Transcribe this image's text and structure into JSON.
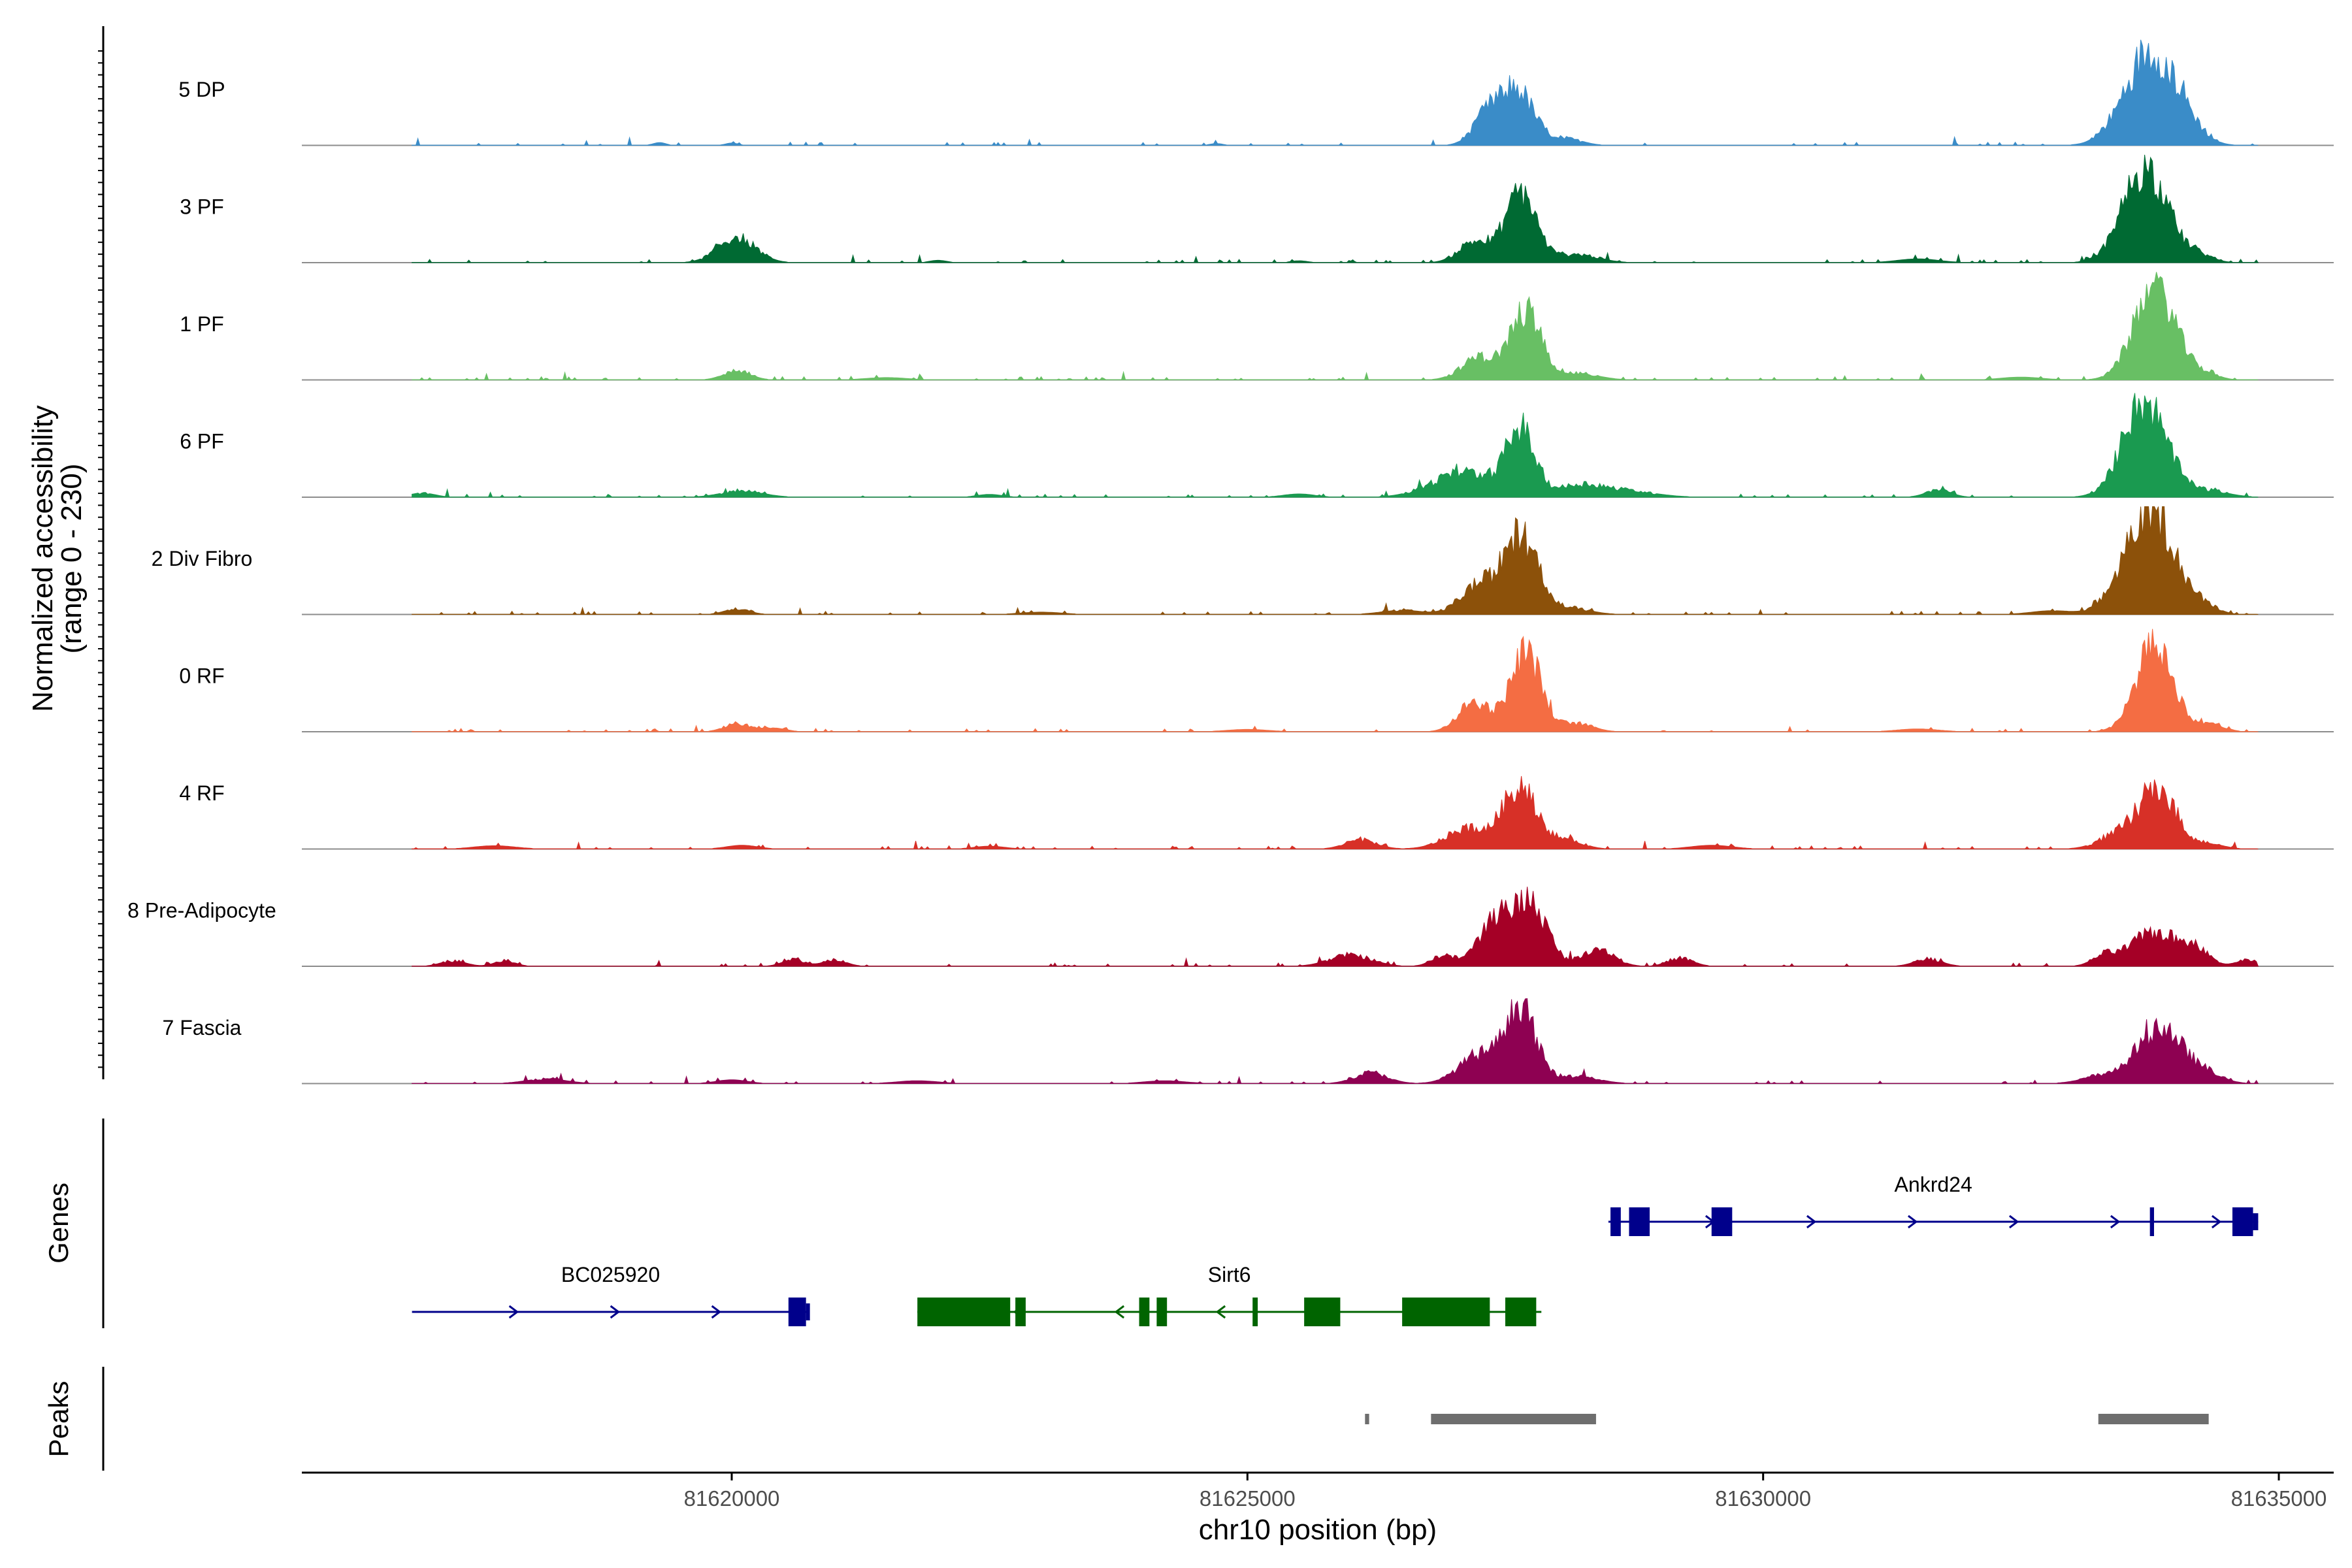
{
  "chart_data": {
    "type": "area",
    "title": "",
    "xlabel": "chr10 position (bp)",
    "ylabel": "Normalized accessibility",
    "ylabel_range": "(range 0 - 230)",
    "xlim": [
      81616000,
      81636000
    ],
    "ylim": [
      0,
      230
    ],
    "data_xlim": [
      81616900,
      81634800
    ],
    "x_ticks": [
      81620000,
      81625000,
      81630000,
      81635000
    ],
    "x_tick_labels": [
      "81620000",
      "81625000",
      "81630000",
      "81635000"
    ],
    "tracks": [
      {
        "name": "5 DP",
        "color": "#3A8CC8",
        "peaks": [
          [
            81619300,
            6,
            60
          ],
          [
            81620000,
            5,
            60
          ],
          [
            81624700,
            4,
            60
          ],
          [
            81627300,
            52,
            130
          ],
          [
            81627600,
            125,
            170
          ],
          [
            81628100,
            14,
            150
          ],
          [
            81633300,
            4,
            80
          ],
          [
            81633750,
            205,
            240
          ],
          [
            81634100,
            30,
            160
          ]
        ]
      },
      {
        "name": "3 PF",
        "color": "#006A33",
        "peaks": [
          [
            81620050,
            55,
            180
          ],
          [
            81622000,
            5,
            80
          ],
          [
            81625500,
            4,
            80
          ],
          [
            81627200,
            46,
            150
          ],
          [
            81627650,
            155,
            150
          ],
          [
            81628200,
            18,
            200
          ],
          [
            81631500,
            8,
            200
          ],
          [
            81633700,
            210,
            210
          ],
          [
            81634200,
            18,
            140
          ]
        ]
      },
      {
        "name": "1 PF",
        "color": "#68BF64",
        "peaks": [
          [
            81620050,
            20,
            130
          ],
          [
            81621500,
            5,
            200
          ],
          [
            81627250,
            48,
            170
          ],
          [
            81627700,
            150,
            150
          ],
          [
            81628200,
            14,
            200
          ],
          [
            81632500,
            6,
            200
          ],
          [
            81633800,
            205,
            200
          ],
          [
            81634300,
            12,
            120
          ]
        ]
      },
      {
        "name": "6 PF",
        "color": "#1A9A50",
        "peaks": [
          [
            81617000,
            9,
            120
          ],
          [
            81620100,
            14,
            200
          ],
          [
            81622500,
            6,
            120
          ],
          [
            81625500,
            7,
            150
          ],
          [
            81627100,
            55,
            300
          ],
          [
            81627650,
            140,
            140
          ],
          [
            81628200,
            22,
            200
          ],
          [
            81628600,
            16,
            300
          ],
          [
            81631700,
            16,
            120
          ],
          [
            81633700,
            210,
            210
          ],
          [
            81634300,
            14,
            200
          ]
        ]
      },
      {
        "name": "2 Div Fibro",
        "color": "#8C510A",
        "peaks": [
          [
            81620050,
            12,
            120
          ],
          [
            81623000,
            5,
            200
          ],
          [
            81626500,
            9,
            200
          ],
          [
            81627250,
            65,
            180
          ],
          [
            81627650,
            170,
            160
          ],
          [
            81628100,
            15,
            200
          ],
          [
            81632800,
            8,
            200
          ],
          [
            81633750,
            235,
            240
          ],
          [
            81634300,
            12,
            120
          ]
        ]
      },
      {
        "name": "0 RF",
        "color": "#F46D43",
        "peaks": [
          [
            81620050,
            18,
            120
          ],
          [
            81620400,
            8,
            120
          ],
          [
            81625000,
            5,
            200
          ],
          [
            81627200,
            66,
            150
          ],
          [
            81627700,
            175,
            150
          ],
          [
            81628200,
            18,
            150
          ],
          [
            81631500,
            6,
            200
          ],
          [
            81633800,
            190,
            180
          ],
          [
            81634350,
            18,
            120
          ]
        ]
      },
      {
        "name": "4 RF",
        "color": "#D73027",
        "peaks": [
          [
            81617700,
            7,
            200
          ],
          [
            81620100,
            8,
            150
          ],
          [
            81622500,
            6,
            150
          ],
          [
            81626100,
            20,
            150
          ],
          [
            81627150,
            45,
            220
          ],
          [
            81627650,
            138,
            160
          ],
          [
            81628100,
            20,
            150
          ],
          [
            81629500,
            8,
            200
          ],
          [
            81633500,
            40,
            200
          ],
          [
            81633850,
            125,
            160
          ],
          [
            81634300,
            12,
            150
          ]
        ]
      },
      {
        "name": "8 Pre-Adipocyte",
        "color": "#A50026",
        "peaks": [
          [
            81617300,
            12,
            120
          ],
          [
            81617800,
            12,
            100
          ],
          [
            81620600,
            14,
            110
          ],
          [
            81621000,
            14,
            110
          ],
          [
            81626000,
            25,
            200
          ],
          [
            81626900,
            24,
            110
          ],
          [
            81627400,
            100,
            160
          ],
          [
            81627750,
            135,
            160
          ],
          [
            81628400,
            40,
            150
          ],
          [
            81629200,
            18,
            120
          ],
          [
            81631600,
            16,
            130
          ],
          [
            81633300,
            20,
            110
          ],
          [
            81633800,
            75,
            240
          ],
          [
            81634200,
            30,
            120
          ],
          [
            81634700,
            14,
            110
          ]
        ]
      },
      {
        "name": "7 Fascia",
        "color": "#8E0152",
        "peaks": [
          [
            81618200,
            10,
            200
          ],
          [
            81620000,
            8,
            150
          ],
          [
            81621800,
            6,
            200
          ],
          [
            81624200,
            6,
            200
          ],
          [
            81626200,
            24,
            160
          ],
          [
            81627250,
            60,
            200
          ],
          [
            81627650,
            158,
            150
          ],
          [
            81628200,
            16,
            200
          ],
          [
            81633300,
            16,
            200
          ],
          [
            81633850,
            125,
            220
          ],
          [
            81634300,
            18,
            160
          ]
        ]
      }
    ],
    "genes": [
      {
        "name": "Ankrd24",
        "strand": "+",
        "color": "#00008B",
        "start": 81628500,
        "end": 81634800,
        "exons": [
          [
            81628520,
            81628620,
            "t"
          ],
          [
            81628700,
            81628900,
            "t"
          ],
          [
            81629500,
            81629700,
            "t"
          ],
          [
            81633750,
            81633790,
            "t"
          ],
          [
            81634550,
            81634750,
            "t"
          ],
          [
            81634750,
            81634800,
            "n"
          ]
        ]
      },
      {
        "name": "BC025920",
        "strand": "+",
        "color": "#00008B",
        "start": 81616900,
        "end": 81620750,
        "exons": [
          [
            81620550,
            81620720,
            "t"
          ],
          [
            81620720,
            81620750,
            "n"
          ]
        ]
      },
      {
        "name": "Sirt6",
        "strand": "-",
        "color": "#006400",
        "start": 81621800,
        "end": 81627850,
        "exons": [
          [
            81621800,
            81622700,
            "t"
          ],
          [
            81622750,
            81622850,
            "t"
          ],
          [
            81623950,
            81624050,
            "t"
          ],
          [
            81624120,
            81624220,
            "t"
          ],
          [
            81625050,
            81625100,
            "t"
          ],
          [
            81625550,
            81625900,
            "t"
          ],
          [
            81626500,
            81627350,
            "t"
          ],
          [
            81627500,
            81627800,
            "t"
          ]
        ]
      }
    ],
    "peaks_track": [
      [
        81626140,
        81626180
      ],
      [
        81626780,
        81628380
      ],
      [
        81633250,
        81634320
      ]
    ],
    "panel_labels": {
      "genes": "Genes",
      "peaks": "Peaks"
    }
  }
}
